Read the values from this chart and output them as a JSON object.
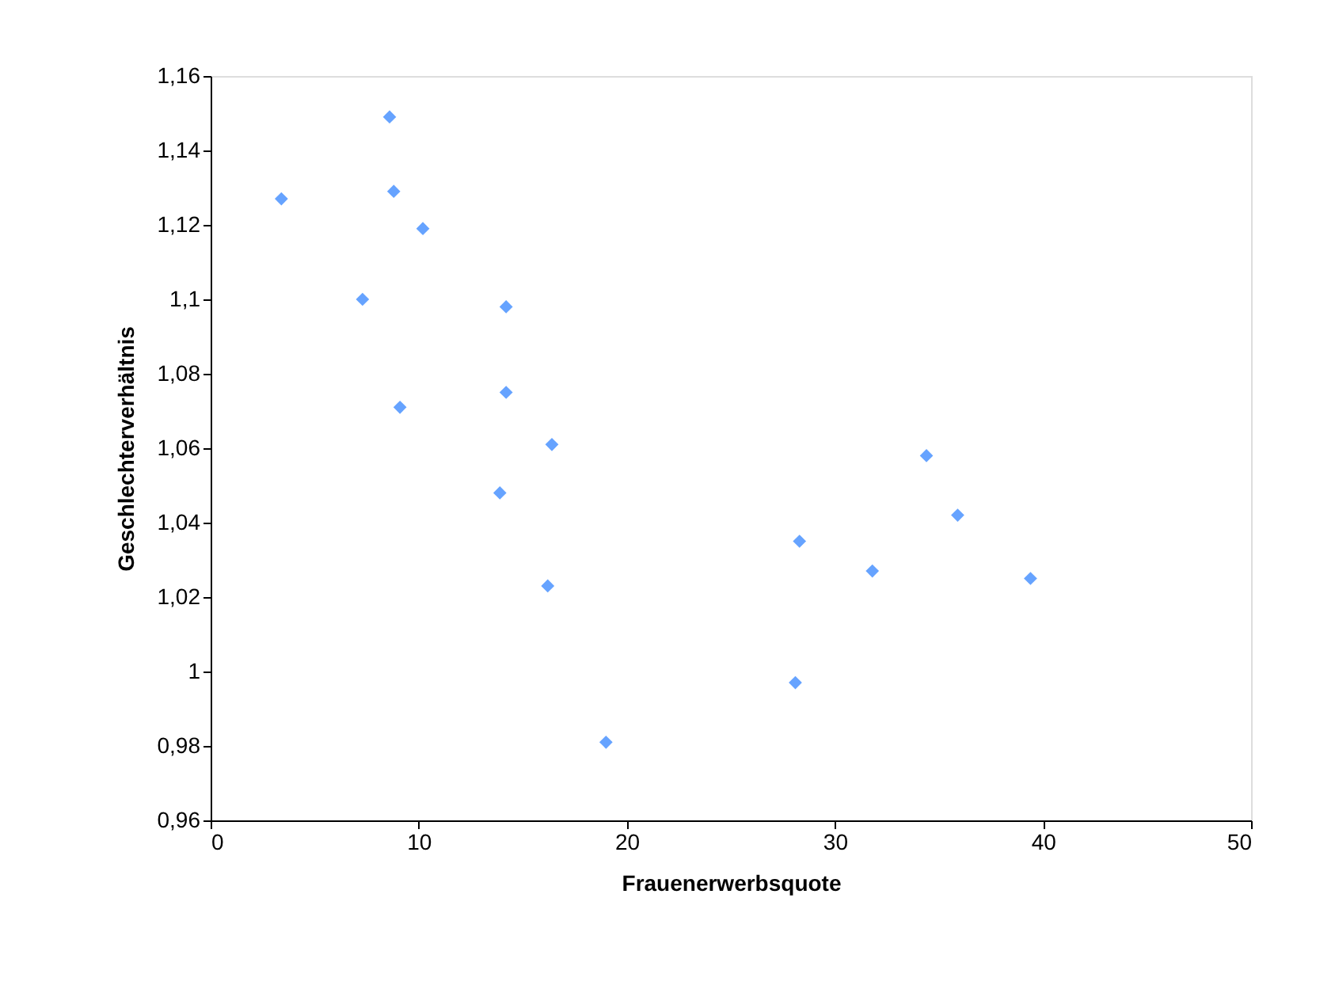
{
  "chart_data": {
    "type": "scatter",
    "xlabel": "Frauenerwerbsquote",
    "ylabel": "Geschlechterverhältnis",
    "x": [
      3.4,
      8.6,
      8.8,
      10.2,
      7.3,
      14.2,
      9.1,
      14.2,
      16.4,
      13.9,
      16.2,
      19.0,
      28.1,
      28.3,
      31.8,
      34.4,
      35.9,
      39.4
    ],
    "series": [
      {
        "color": "#66a3ff",
        "values": [
          1.127,
          1.149,
          1.129,
          1.119,
          1.1,
          1.098,
          1.071,
          1.075,
          1.061,
          1.048,
          1.023,
          0.981,
          0.997,
          1.035,
          1.027,
          1.058,
          1.042,
          1.025
        ]
      }
    ],
    "xlim": [
      0,
      50
    ],
    "xticks": [
      0,
      10,
      20,
      30,
      40,
      50
    ],
    "ylim": [
      0.96,
      1.16
    ],
    "yticks": [
      {
        "value": 0.96,
        "label": "0,96"
      },
      {
        "value": 0.98,
        "label": "0,98"
      },
      {
        "value": 1,
        "label": "1"
      },
      {
        "value": 1.02,
        "label": "1,02"
      },
      {
        "value": 1.04,
        "label": "1,04"
      },
      {
        "value": 1.06,
        "label": "1,06"
      },
      {
        "value": 1.08,
        "label": "1,08"
      },
      {
        "value": 1.1,
        "label": "1,1"
      },
      {
        "value": 1.12,
        "label": "1,12"
      },
      {
        "value": 1.14,
        "label": "1,14"
      },
      {
        "value": 1.16,
        "label": "1,16"
      }
    ],
    "marker": "diamond",
    "grid": false
  }
}
